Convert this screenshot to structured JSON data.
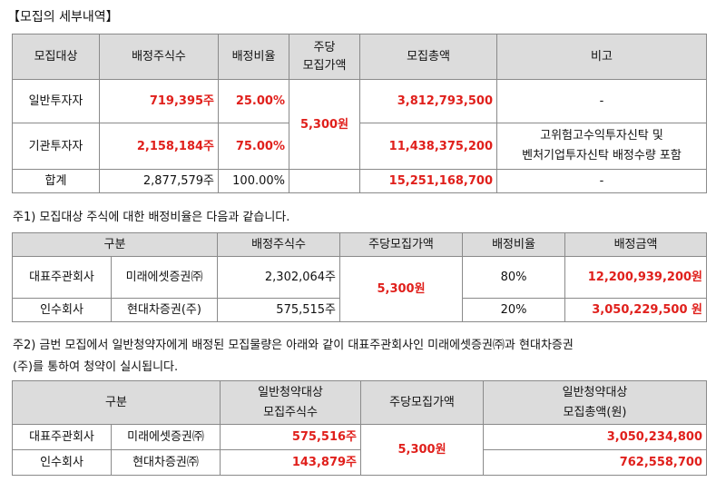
{
  "title": "【모집의 세부내역】",
  "table1": {
    "headers": [
      "모집대상",
      "배정주식수",
      "배정비율",
      "주당\n모집가액",
      "모집총액",
      "비고"
    ],
    "rows": [
      {
        "target": "일반투자자",
        "shares": "719,395주",
        "ratio": "25.00%",
        "amount": "3,812,793,500",
        "note": "-"
      },
      {
        "target": "기관투자자",
        "shares": "2,158,184주",
        "ratio": "75.00%",
        "amount": "11,438,375,200",
        "note": "고위험고수익투자신탁 및\n벤처기업투자신탁 배정수량 포함"
      },
      {
        "target": "합계",
        "shares": "2,877,579주",
        "ratio": "100.00%",
        "amount": "15,251,168,700",
        "note": "-"
      }
    ],
    "price": "5,300원"
  },
  "note1": "주1) 모집대상 주식에 대한 배정비율은 다음과 같습니다.",
  "table2": {
    "headers": [
      "구분",
      "배정주식수",
      "주당모집가액",
      "배정비율",
      "배정금액"
    ],
    "rows": [
      {
        "role": "대표주관회사",
        "firm": "미래에셋증권㈜",
        "shares": "2,302,064주",
        "ratio": "80%",
        "amount": "12,200,939,200원"
      },
      {
        "role": "인수회사",
        "firm": "현대차증권(주)",
        "shares": "575,515주",
        "ratio": "20%",
        "amount": "3,050,229,500 원"
      }
    ],
    "price": "5,300원"
  },
  "note2_line1": "주2) 금번 모집에서 일반청약자에게 배정된 모집물량은 아래와 같이 대표주관회사인 미래에셋증권㈜과 현대차증권",
  "note2_line2": "(주)를 통하여 청약이 실시됩니다.",
  "table3": {
    "headers": [
      "구분",
      "일반청약대상\n모집주식수",
      "주당모집가액",
      "일반청약대상\n모집총액(원)"
    ],
    "rows": [
      {
        "role": "대표주관회사",
        "firm": "미래에셋증권㈜",
        "shares": "575,516주",
        "amount": "3,050,234,800"
      },
      {
        "role": "인수회사",
        "firm": "현대차증권㈜",
        "shares": "143,879주",
        "amount": "762,558,700"
      }
    ],
    "price": "5,300원"
  }
}
